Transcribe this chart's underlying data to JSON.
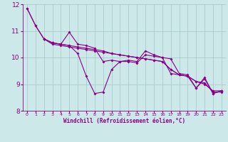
{
  "xlabel": "Windchill (Refroidissement éolien,°C)",
  "xlim": [
    -0.5,
    23.5
  ],
  "ylim": [
    8,
    12
  ],
  "yticks": [
    8,
    9,
    10,
    11,
    12
  ],
  "xticks": [
    0,
    1,
    2,
    3,
    4,
    5,
    6,
    7,
    8,
    9,
    10,
    11,
    12,
    13,
    14,
    15,
    16,
    17,
    18,
    19,
    20,
    21,
    22,
    23
  ],
  "bg_color": "#cce8e8",
  "grid_color": "#aacccc",
  "line_color": "#880088",
  "series1": {
    "x": [
      0,
      1,
      2,
      3,
      4,
      5,
      6,
      7,
      8,
      9,
      10,
      11,
      12,
      13,
      14,
      15,
      16,
      17,
      18,
      19,
      20,
      21,
      22,
      23
    ],
    "y": [
      11.85,
      11.2,
      10.7,
      10.55,
      10.5,
      10.45,
      10.15,
      9.3,
      8.65,
      8.7,
      9.55,
      9.85,
      9.9,
      9.85,
      10.25,
      10.1,
      10.0,
      9.95,
      9.4,
      9.35,
      8.85,
      9.25,
      8.65,
      8.75
    ]
  },
  "series2": {
    "x": [
      0,
      1,
      2,
      3,
      4,
      5,
      6,
      7,
      8,
      9,
      10,
      11,
      12,
      13,
      14,
      15,
      16,
      17,
      18,
      19,
      20,
      21,
      22,
      23
    ],
    "y": [
      11.85,
      11.2,
      10.7,
      10.55,
      10.5,
      10.45,
      10.4,
      10.35,
      10.3,
      10.25,
      10.15,
      10.1,
      10.05,
      10.0,
      9.95,
      9.9,
      9.85,
      9.55,
      9.35,
      9.3,
      9.1,
      9.0,
      8.75,
      8.75
    ]
  },
  "series3": {
    "x": [
      2,
      3,
      4,
      5,
      6,
      7,
      8,
      9,
      10,
      11,
      12,
      13,
      14,
      15,
      16,
      17,
      18,
      19,
      20,
      21,
      22,
      23
    ],
    "y": [
      10.7,
      10.55,
      10.5,
      10.95,
      10.5,
      10.45,
      10.35,
      9.85,
      9.9,
      9.85,
      9.85,
      9.8,
      10.1,
      10.05,
      10.0,
      9.4,
      9.35,
      9.3,
      8.85,
      9.2,
      8.65,
      8.75
    ]
  },
  "series4": {
    "x": [
      2,
      3,
      4,
      5,
      6,
      7,
      8,
      9,
      10,
      11,
      12,
      13,
      14,
      15,
      16,
      17,
      18,
      19,
      20,
      21,
      22,
      23
    ],
    "y": [
      10.7,
      10.5,
      10.45,
      10.4,
      10.35,
      10.3,
      10.25,
      10.2,
      10.15,
      10.1,
      10.05,
      10.0,
      9.95,
      9.9,
      9.85,
      9.55,
      9.35,
      9.3,
      9.1,
      9.05,
      8.7,
      8.7
    ]
  },
  "marker_size": 2.0,
  "line_width": 0.8
}
